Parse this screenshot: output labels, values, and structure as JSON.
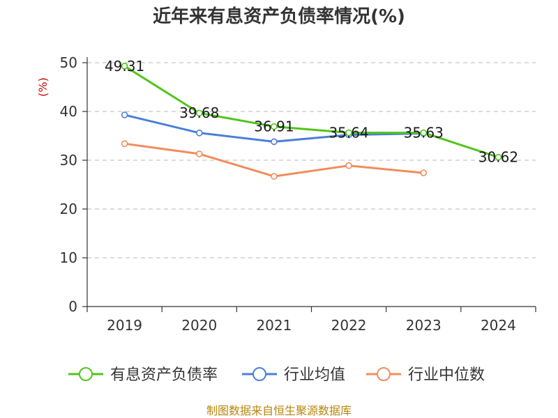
{
  "chart_data": {
    "type": "line",
    "title": "近年来有息资产负债率情况(%)",
    "ylabel": "(%)",
    "xlabel": "",
    "categories": [
      "2019",
      "2020",
      "2021",
      "2022",
      "2023",
      "2024"
    ],
    "ylim": [
      0,
      50
    ],
    "yticks": [
      0,
      10,
      20,
      30,
      40,
      50
    ],
    "grid": true,
    "legend_position": "bottom",
    "series": [
      {
        "name": "有息资产负债率",
        "color": "#52c41a",
        "values": [
          49.31,
          39.68,
          36.91,
          35.64,
          35.63,
          30.62
        ],
        "data_labels": [
          "49.31",
          "39.68",
          "36.91",
          "35.64",
          "35.63",
          "30.62"
        ]
      },
      {
        "name": "行业均值",
        "color": "#4a7fd9",
        "values": [
          39.3,
          35.6,
          33.8,
          35.2,
          35.5,
          null
        ]
      },
      {
        "name": "行业中位数",
        "color": "#f28c5a",
        "values": [
          33.4,
          31.3,
          26.7,
          28.9,
          27.4,
          null
        ]
      }
    ],
    "source": "制图数据来自恒生聚源数据库"
  }
}
